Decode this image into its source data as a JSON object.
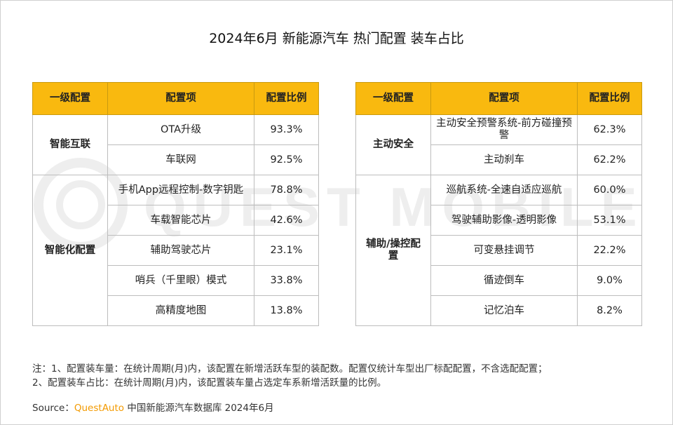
{
  "title": "2024年6月 新能源汽车 热门配置 装车占比",
  "watermark": "QUEST MOBILE",
  "headers": [
    "一级配置",
    "配置项",
    "配置比例"
  ],
  "left_table": {
    "groups": [
      {
        "category": "智能互联",
        "rows": [
          {
            "item": "OTA升级",
            "ratio": "93.3%"
          },
          {
            "item": "车联网",
            "ratio": "92.5%"
          }
        ]
      },
      {
        "category": "智能化配置",
        "rows": [
          {
            "item": "手机App远程控制-数字钥匙",
            "ratio": "78.8%"
          },
          {
            "item": "车载智能芯片",
            "ratio": "42.6%"
          },
          {
            "item": "辅助驾驶芯片",
            "ratio": "23.1%"
          },
          {
            "item": "哨兵（千里眼）模式",
            "ratio": "33.8%"
          },
          {
            "item": "高精度地图",
            "ratio": "13.8%"
          }
        ]
      }
    ]
  },
  "right_table": {
    "groups": [
      {
        "category": "主动安全",
        "rows": [
          {
            "item": "主动安全预警系统-前方碰撞预警",
            "ratio": "62.3%"
          },
          {
            "item": "主动刹车",
            "ratio": "62.2%"
          }
        ]
      },
      {
        "category": "辅助/操控配置",
        "rows": [
          {
            "item": "巡航系统-全速自适应巡航",
            "ratio": "60.0%"
          },
          {
            "item": "驾驶辅助影像-透明影像",
            "ratio": "53.1%"
          },
          {
            "item": "可变悬挂调节",
            "ratio": "22.2%"
          },
          {
            "item": "循迹倒车",
            "ratio": "9.0%"
          },
          {
            "item": "记忆泊车",
            "ratio": "8.2%"
          }
        ]
      }
    ]
  },
  "notes": [
    "注：1、配置装车量：在统计周期(月)内，该配置在新增活跃车型的装配数。配置仅统计车型出厂标配配置，不含选配配置；",
    "2、配置装车占比：在统计周期(月)内，该配置装车量占选定车系新增活跃量的比例。"
  ],
  "source": {
    "label": "Source：",
    "brand": "QuestAuto",
    "text": " 中国新能源汽车数据库 2024年6月"
  },
  "colors": {
    "header_bg": "#f9b90f",
    "brand": "#f39a00",
    "watermark": "#eeeeee"
  }
}
